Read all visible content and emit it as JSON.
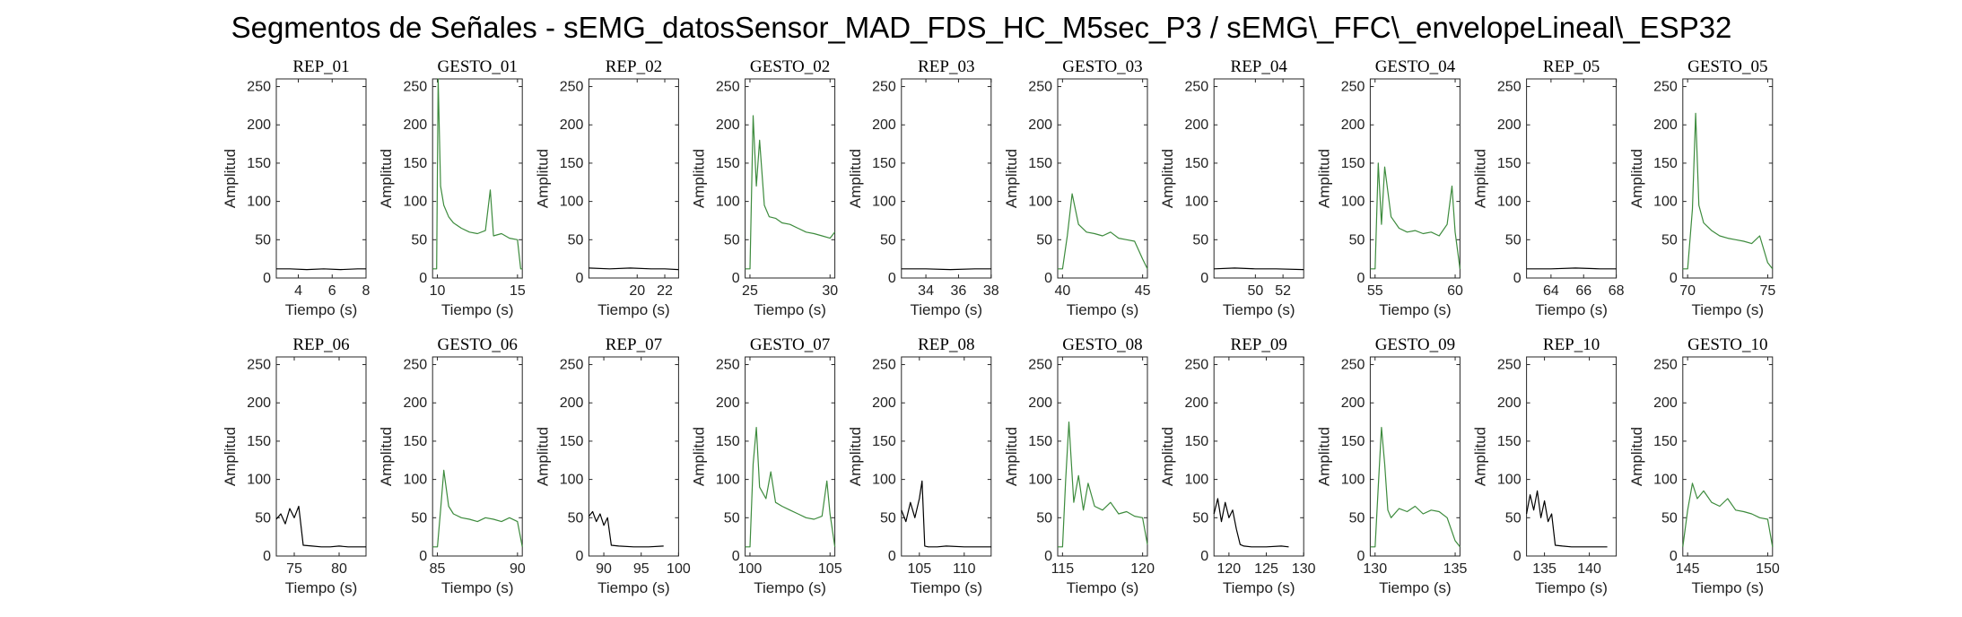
{
  "figure_title": "Segmentos de Señales - sEMG_datosSensor_MAD_FDS_HC_M5sec_P3 / sEMG\\_FFC\\_envelopeLineal\\_ESP32",
  "colors": {
    "rep": "#000000",
    "gesto": "#3d8b3d"
  },
  "chart_data": [
    {
      "type": "line",
      "title": "REP_01",
      "kind": "rep",
      "xlabel": "Tiempo (s)",
      "ylabel": "Amplitud",
      "xlim": [
        2.7,
        8
      ],
      "ylim": [
        0,
        260
      ],
      "xticks": [
        4,
        6,
        8
      ],
      "yticks": [
        0,
        50,
        100,
        150,
        200,
        250
      ],
      "series": [
        {
          "name": "",
          "x": [
            2.7,
            3.5,
            4.5,
            5.5,
            6.5,
            7.5,
            8.0
          ],
          "y": [
            12,
            12,
            11,
            12,
            11,
            12,
            12
          ]
        }
      ]
    },
    {
      "type": "line",
      "title": "GESTO_01",
      "kind": "gesto",
      "xlabel": "Tiempo (s)",
      "ylabel": "Amplitud",
      "xlim": [
        9.7,
        15.3
      ],
      "ylim": [
        0,
        260
      ],
      "xticks": [
        10,
        15
      ],
      "yticks": [
        0,
        50,
        100,
        150,
        200,
        250
      ],
      "series": [
        {
          "name": "",
          "x": [
            9.7,
            9.95,
            10.05,
            10.2,
            10.4,
            10.7,
            11.0,
            11.5,
            12.0,
            12.5,
            13.0,
            13.3,
            13.5,
            14.0,
            14.5,
            15.0,
            15.2,
            15.3
          ],
          "y": [
            12,
            12,
            260,
            120,
            95,
            80,
            72,
            65,
            60,
            58,
            62,
            115,
            55,
            58,
            52,
            50,
            12,
            12
          ]
        }
      ]
    },
    {
      "type": "line",
      "title": "REP_02",
      "kind": "rep",
      "xlabel": "Tiempo (s)",
      "ylabel": "Amplitud",
      "xlim": [
        16.5,
        23
      ],
      "ylim": [
        0,
        260
      ],
      "xticks": [
        20,
        22
      ],
      "yticks": [
        0,
        50,
        100,
        150,
        200,
        250
      ],
      "series": [
        {
          "name": "",
          "x": [
            16.5,
            18,
            19.5,
            21,
            22,
            23
          ],
          "y": [
            13,
            12,
            13,
            12,
            12,
            11
          ]
        }
      ]
    },
    {
      "type": "line",
      "title": "GESTO_02",
      "kind": "gesto",
      "xlabel": "Tiempo (s)",
      "ylabel": "Amplitud",
      "xlim": [
        24.7,
        30.3
      ],
      "ylim": [
        0,
        260
      ],
      "xticks": [
        25,
        30
      ],
      "yticks": [
        0,
        50,
        100,
        150,
        200,
        250
      ],
      "series": [
        {
          "name": "",
          "x": [
            24.7,
            25.0,
            25.2,
            25.4,
            25.6,
            25.9,
            26.2,
            26.6,
            27.0,
            27.5,
            28.0,
            28.5,
            29.0,
            29.5,
            30.0,
            30.3
          ],
          "y": [
            12,
            12,
            212,
            120,
            180,
            95,
            80,
            78,
            72,
            70,
            65,
            60,
            58,
            55,
            52,
            60
          ]
        }
      ]
    },
    {
      "type": "line",
      "title": "REP_03",
      "kind": "rep",
      "xlabel": "Tiempo (s)",
      "ylabel": "Amplitud",
      "xlim": [
        32.5,
        38
      ],
      "ylim": [
        0,
        260
      ],
      "xticks": [
        34,
        36,
        38
      ],
      "yticks": [
        0,
        50,
        100,
        150,
        200,
        250
      ],
      "series": [
        {
          "name": "",
          "x": [
            32.5,
            34,
            35.5,
            37,
            38
          ],
          "y": [
            12,
            12,
            11,
            12,
            12
          ]
        }
      ]
    },
    {
      "type": "line",
      "title": "GESTO_03",
      "kind": "gesto",
      "xlabel": "Tiempo (s)",
      "ylabel": "Amplitud",
      "xlim": [
        39.7,
        45.3
      ],
      "ylim": [
        0,
        260
      ],
      "xticks": [
        40,
        45
      ],
      "yticks": [
        0,
        50,
        100,
        150,
        200,
        250
      ],
      "series": [
        {
          "name": "",
          "x": [
            39.7,
            40.0,
            40.3,
            40.6,
            41.0,
            41.5,
            42.0,
            42.5,
            43.0,
            43.5,
            44.0,
            44.5,
            45.0,
            45.3
          ],
          "y": [
            12,
            12,
            55,
            110,
            70,
            60,
            58,
            55,
            60,
            52,
            50,
            48,
            25,
            12
          ]
        }
      ]
    },
    {
      "type": "line",
      "title": "REP_04",
      "kind": "rep",
      "xlabel": "Tiempo (s)",
      "ylabel": "Amplitud",
      "xlim": [
        47,
        53.5
      ],
      "ylim": [
        0,
        260
      ],
      "xticks": [
        50,
        52
      ],
      "yticks": [
        0,
        50,
        100,
        150,
        200,
        250
      ],
      "series": [
        {
          "name": "",
          "x": [
            47,
            48.5,
            50,
            51.5,
            53.5
          ],
          "y": [
            12,
            13,
            12,
            12,
            11
          ]
        }
      ]
    },
    {
      "type": "line",
      "title": "GESTO_04",
      "kind": "gesto",
      "xlabel": "Tiempo (s)",
      "ylabel": "Amplitud",
      "xlim": [
        54.7,
        60.3
      ],
      "ylim": [
        0,
        260
      ],
      "xticks": [
        55,
        60
      ],
      "yticks": [
        0,
        50,
        100,
        150,
        200,
        250
      ],
      "series": [
        {
          "name": "",
          "x": [
            54.7,
            55.0,
            55.2,
            55.4,
            55.6,
            56.0,
            56.5,
            57.0,
            57.5,
            58.0,
            58.5,
            59.0,
            59.5,
            59.8,
            60.0,
            60.3
          ],
          "y": [
            12,
            12,
            150,
            70,
            145,
            80,
            65,
            60,
            62,
            58,
            60,
            55,
            70,
            120,
            60,
            12
          ]
        }
      ]
    },
    {
      "type": "line",
      "title": "REP_05",
      "kind": "rep",
      "xlabel": "Tiempo (s)",
      "ylabel": "Amplitud",
      "xlim": [
        62.5,
        68
      ],
      "ylim": [
        0,
        260
      ],
      "xticks": [
        64,
        66,
        68
      ],
      "yticks": [
        0,
        50,
        100,
        150,
        200,
        250
      ],
      "series": [
        {
          "name": "",
          "x": [
            62.5,
            64,
            65.5,
            67,
            68
          ],
          "y": [
            12,
            12,
            13,
            12,
            12
          ]
        }
      ]
    },
    {
      "type": "line",
      "title": "GESTO_05",
      "kind": "gesto",
      "xlabel": "Tiempo (s)",
      "ylabel": "Amplitud",
      "xlim": [
        69.7,
        75.3
      ],
      "ylim": [
        0,
        260
      ],
      "xticks": [
        70,
        75
      ],
      "yticks": [
        0,
        50,
        100,
        150,
        200,
        250
      ],
      "series": [
        {
          "name": "",
          "x": [
            69.7,
            70.0,
            70.3,
            70.5,
            70.7,
            71.0,
            71.5,
            72.0,
            72.5,
            73.0,
            73.5,
            74.0,
            74.5,
            75.0,
            75.3
          ],
          "y": [
            12,
            12,
            90,
            215,
            95,
            72,
            62,
            55,
            52,
            50,
            48,
            45,
            55,
            20,
            12
          ]
        }
      ]
    },
    {
      "type": "line",
      "title": "REP_06",
      "kind": "rep",
      "xlabel": "Tiempo (s)",
      "ylabel": "Amplitud",
      "xlim": [
        73,
        83
      ],
      "ylim": [
        0,
        260
      ],
      "xticks": [
        75,
        80
      ],
      "yticks": [
        0,
        50,
        100,
        150,
        200,
        250
      ],
      "series": [
        {
          "name": "",
          "x": [
            73,
            73.5,
            74,
            74.5,
            75,
            75.5,
            76,
            77,
            78,
            79,
            80,
            81,
            82,
            83
          ],
          "y": [
            48,
            55,
            42,
            62,
            50,
            65,
            14,
            13,
            12,
            12,
            13,
            12,
            12,
            12
          ]
        }
      ]
    },
    {
      "type": "line",
      "title": "GESTO_06",
      "kind": "gesto",
      "xlabel": "Tiempo (s)",
      "ylabel": "Amplitud",
      "xlim": [
        84.7,
        90.3
      ],
      "ylim": [
        0,
        260
      ],
      "xticks": [
        85,
        90
      ],
      "yticks": [
        0,
        50,
        100,
        150,
        200,
        250
      ],
      "series": [
        {
          "name": "",
          "x": [
            84.7,
            85.0,
            85.2,
            85.4,
            85.7,
            86.0,
            86.5,
            87.0,
            87.5,
            88.0,
            88.5,
            89.0,
            89.5,
            90.0,
            90.3
          ],
          "y": [
            12,
            12,
            60,
            112,
            65,
            55,
            50,
            48,
            45,
            50,
            48,
            45,
            50,
            45,
            12
          ]
        }
      ]
    },
    {
      "type": "line",
      "title": "REP_07",
      "kind": "rep",
      "xlabel": "Tiempo (s)",
      "ylabel": "Amplitud",
      "xlim": [
        88,
        100
      ],
      "ylim": [
        0,
        260
      ],
      "xticks": [
        90,
        95,
        100
      ],
      "yticks": [
        0,
        50,
        100,
        150,
        200,
        250
      ],
      "series": [
        {
          "name": "",
          "x": [
            88,
            88.5,
            89,
            89.5,
            90,
            90.5,
            91,
            92,
            94,
            96,
            98
          ],
          "y": [
            52,
            58,
            45,
            55,
            40,
            50,
            14,
            13,
            12,
            12,
            13
          ]
        }
      ]
    },
    {
      "type": "line",
      "title": "GESTO_07",
      "kind": "gesto",
      "xlabel": "Tiempo (s)",
      "ylabel": "Amplitud",
      "xlim": [
        99.7,
        105.3
      ],
      "ylim": [
        0,
        260
      ],
      "xticks": [
        100,
        105
      ],
      "yticks": [
        0,
        50,
        100,
        150,
        200,
        250
      ],
      "series": [
        {
          "name": "",
          "x": [
            99.7,
            100.0,
            100.2,
            100.4,
            100.6,
            101.0,
            101.3,
            101.6,
            102.0,
            102.5,
            103.0,
            103.5,
            104.0,
            104.5,
            104.8,
            105.0,
            105.3
          ],
          "y": [
            12,
            12,
            120,
            168,
            90,
            75,
            110,
            70,
            65,
            60,
            55,
            50,
            48,
            52,
            98,
            55,
            12
          ]
        }
      ]
    },
    {
      "type": "line",
      "title": "REP_08",
      "kind": "rep",
      "xlabel": "Tiempo (s)",
      "ylabel": "Amplitud",
      "xlim": [
        103,
        113
      ],
      "ylim": [
        0,
        260
      ],
      "xticks": [
        105,
        110
      ],
      "yticks": [
        0,
        50,
        100,
        150,
        200,
        250
      ],
      "series": [
        {
          "name": "",
          "x": [
            103,
            103.5,
            104,
            104.5,
            105,
            105.3,
            105.6,
            106,
            107,
            108,
            110,
            112,
            113
          ],
          "y": [
            60,
            45,
            70,
            50,
            75,
            98,
            13,
            12,
            12,
            13,
            12,
            12,
            12
          ]
        }
      ]
    },
    {
      "type": "line",
      "title": "GESTO_08",
      "kind": "gesto",
      "xlabel": "Tiempo (s)",
      "ylabel": "Amplitud",
      "xlim": [
        114.7,
        120.3
      ],
      "ylim": [
        0,
        260
      ],
      "xticks": [
        115,
        120
      ],
      "yticks": [
        0,
        50,
        100,
        150,
        200,
        250
      ],
      "series": [
        {
          "name": "",
          "x": [
            114.7,
            115.0,
            115.2,
            115.4,
            115.7,
            116.0,
            116.3,
            116.6,
            117.0,
            117.5,
            118.0,
            118.5,
            119.0,
            119.5,
            120.0,
            120.3
          ],
          "y": [
            12,
            12,
            100,
            175,
            70,
            105,
            60,
            95,
            65,
            60,
            70,
            55,
            58,
            52,
            50,
            15
          ]
        }
      ]
    },
    {
      "type": "line",
      "title": "REP_09",
      "kind": "rep",
      "xlabel": "Tiempo (s)",
      "ylabel": "Amplitud",
      "xlim": [
        118,
        130
      ],
      "ylim": [
        0,
        260
      ],
      "xticks": [
        120,
        125,
        130
      ],
      "yticks": [
        0,
        50,
        100,
        150,
        200,
        250
      ],
      "series": [
        {
          "name": "",
          "x": [
            118,
            118.5,
            119,
            119.5,
            120,
            120.5,
            121,
            121.5,
            122,
            123,
            125,
            127,
            128
          ],
          "y": [
            55,
            75,
            45,
            70,
            50,
            60,
            35,
            15,
            13,
            12,
            12,
            13,
            12
          ]
        }
      ]
    },
    {
      "type": "line",
      "title": "GESTO_09",
      "kind": "gesto",
      "xlabel": "Tiempo (s)",
      "ylabel": "Amplitud",
      "xlim": [
        129.7,
        135.3
      ],
      "ylim": [
        0,
        260
      ],
      "xticks": [
        130,
        135
      ],
      "yticks": [
        0,
        50,
        100,
        150,
        200,
        250
      ],
      "series": [
        {
          "name": "",
          "x": [
            129.7,
            130.0,
            130.2,
            130.4,
            130.6,
            130.8,
            131.0,
            131.5,
            132.0,
            132.5,
            133.0,
            133.5,
            134.0,
            134.5,
            135.0,
            135.3
          ],
          "y": [
            12,
            12,
            90,
            168,
            120,
            60,
            50,
            62,
            58,
            65,
            55,
            60,
            58,
            50,
            20,
            12
          ]
        }
      ]
    },
    {
      "type": "line",
      "title": "REP_10",
      "kind": "rep",
      "xlabel": "Tiempo (s)",
      "ylabel": "Amplitud",
      "xlim": [
        133,
        143
      ],
      "ylim": [
        0,
        260
      ],
      "xticks": [
        135,
        140
      ],
      "yticks": [
        0,
        50,
        100,
        150,
        200,
        250
      ],
      "series": [
        {
          "name": "",
          "x": [
            133,
            133.4,
            133.8,
            134.2,
            134.6,
            135.0,
            135.4,
            135.8,
            136.2,
            137,
            138,
            140,
            142
          ],
          "y": [
            55,
            80,
            60,
            85,
            50,
            72,
            45,
            55,
            14,
            13,
            12,
            12,
            12
          ]
        }
      ]
    },
    {
      "type": "line",
      "title": "GESTO_10",
      "kind": "gesto",
      "xlabel": "Tiempo (s)",
      "ylabel": "Amplitud",
      "xlim": [
        144.7,
        150.3
      ],
      "ylim": [
        0,
        260
      ],
      "xticks": [
        145,
        150
      ],
      "yticks": [
        0,
        50,
        100,
        150,
        200,
        250
      ],
      "series": [
        {
          "name": "",
          "x": [
            144.7,
            145.0,
            145.3,
            145.6,
            146.0,
            146.5,
            147.0,
            147.5,
            148.0,
            148.5,
            149.0,
            149.5,
            150.0,
            150.3
          ],
          "y": [
            12,
            60,
            95,
            75,
            85,
            70,
            65,
            75,
            60,
            58,
            55,
            50,
            48,
            12
          ]
        }
      ]
    }
  ]
}
